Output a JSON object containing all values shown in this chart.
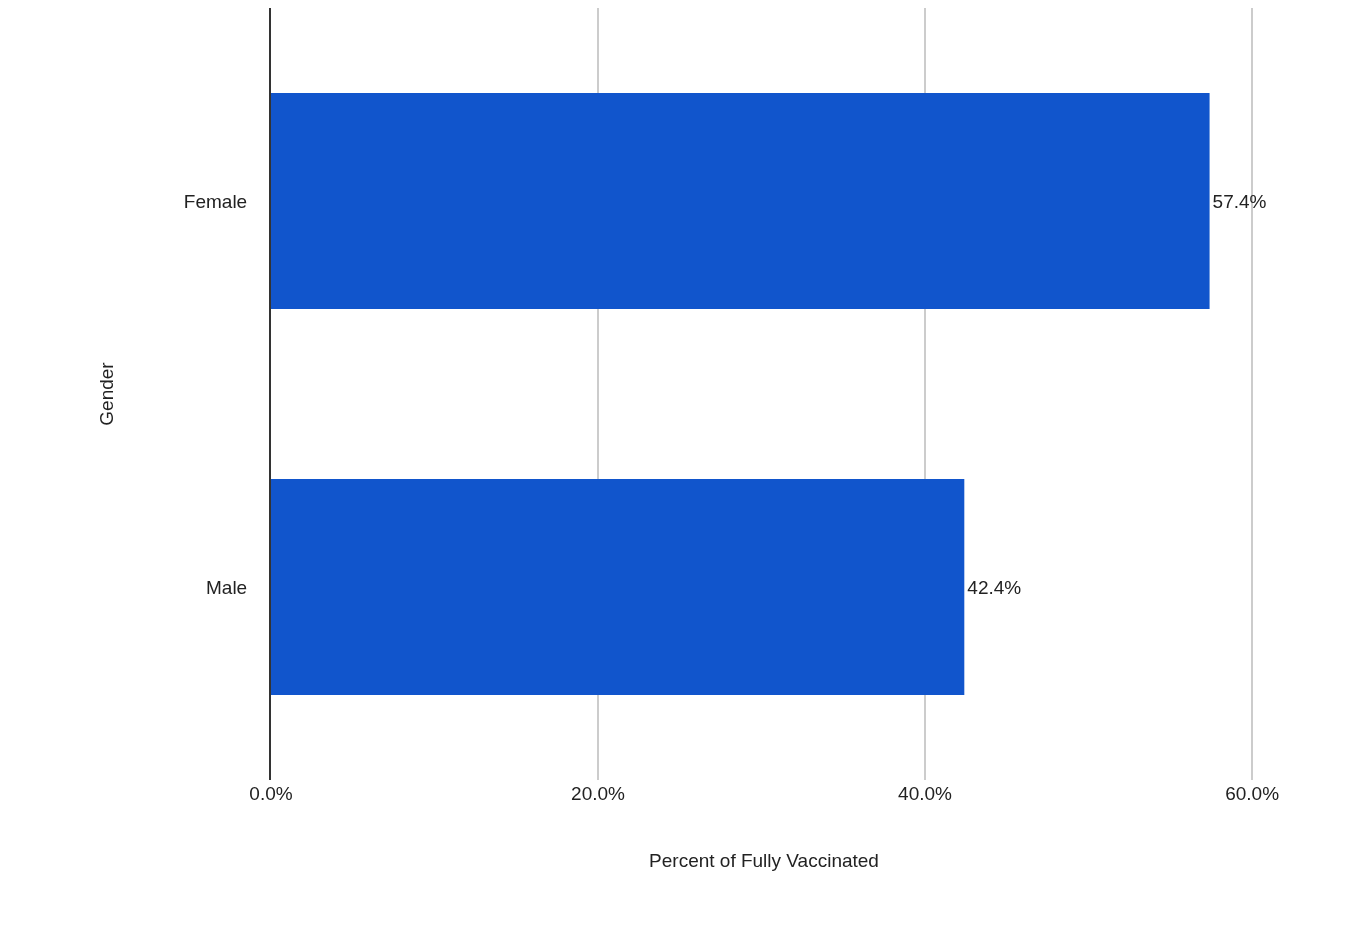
{
  "chart_data": {
    "type": "bar",
    "orientation": "horizontal",
    "categories": [
      "Female",
      "Male"
    ],
    "values": [
      57.4,
      42.4
    ],
    "value_labels": [
      "57.4%",
      "42.4%"
    ],
    "color": "#1155cc",
    "xlabel": "Percent of Fully Vaccinated",
    "ylabel": "Gender",
    "xlim": [
      0,
      60.3
    ],
    "xticks": [
      {
        "value": 0,
        "label": "0.0%"
      },
      {
        "value": 20,
        "label": "20.0%"
      },
      {
        "value": 40,
        "label": "40.0%"
      },
      {
        "value": 60,
        "label": "60.0%"
      }
    ],
    "grid": "x"
  }
}
